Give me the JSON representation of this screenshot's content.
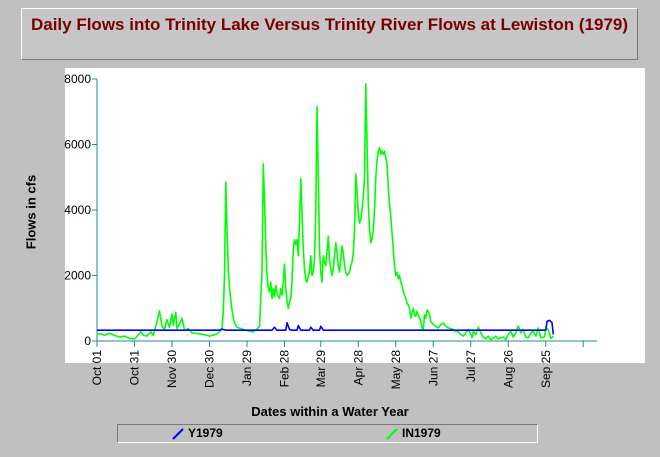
{
  "chart_data": {
    "type": "line",
    "title": "Daily Flows into Trinity Lake Versus Trinity River Flows at Lewiston (1979)",
    "xlabel": "Dates within a Water Year",
    "ylabel": "Flows in cfs",
    "ylim": [
      0,
      8000
    ],
    "xlim": [
      0,
      400
    ],
    "grid": false,
    "legend_position": "bottom",
    "x_ticks": [
      {
        "day": 0,
        "label": "Oct 01"
      },
      {
        "day": 30,
        "label": "Oct 31"
      },
      {
        "day": 60,
        "label": "Nov 30"
      },
      {
        "day": 90,
        "label": "Dec 30"
      },
      {
        "day": 120,
        "label": "Jan 29"
      },
      {
        "day": 150,
        "label": "Feb 28"
      },
      {
        "day": 179,
        "label": "Mar 29"
      },
      {
        "day": 209,
        "label": "Apr 28"
      },
      {
        "day": 239,
        "label": "May 28"
      },
      {
        "day": 269,
        "label": "Jun 27"
      },
      {
        "day": 299,
        "label": "Jul 27"
      },
      {
        "day": 329,
        "label": "Aug 26"
      },
      {
        "day": 359,
        "label": "Sep 25"
      }
    ],
    "x_minor_ticks": [
      389
    ],
    "y_ticks": [
      0,
      2000,
      4000,
      6000,
      8000
    ],
    "series": [
      {
        "name": "Y1979",
        "color": "#0000ff",
        "points": [
          [
            0,
            330
          ],
          [
            98,
            330
          ],
          [
            100,
            360
          ],
          [
            103,
            330
          ],
          [
            140,
            330
          ],
          [
            142,
            420
          ],
          [
            144,
            330
          ],
          [
            151,
            330
          ],
          [
            152,
            560
          ],
          [
            154,
            350
          ],
          [
            156,
            330
          ],
          [
            160,
            330
          ],
          [
            161,
            470
          ],
          [
            163,
            330
          ],
          [
            170,
            330
          ],
          [
            171,
            420
          ],
          [
            173,
            330
          ],
          [
            178,
            330
          ],
          [
            179,
            450
          ],
          [
            181,
            330
          ],
          [
            359,
            330
          ],
          [
            360,
            600
          ],
          [
            362,
            630
          ],
          [
            364,
            560
          ],
          [
            365,
            200
          ]
        ]
      },
      {
        "name": "IN1979",
        "color": "#00ff00",
        "points": [
          [
            0,
            200
          ],
          [
            3,
            220
          ],
          [
            6,
            170
          ],
          [
            10,
            240
          ],
          [
            14,
            170
          ],
          [
            18,
            120
          ],
          [
            22,
            150
          ],
          [
            26,
            80
          ],
          [
            30,
            60
          ],
          [
            32,
            140
          ],
          [
            35,
            280
          ],
          [
            37,
            180
          ],
          [
            40,
            150
          ],
          [
            43,
            280
          ],
          [
            45,
            170
          ],
          [
            48,
            600
          ],
          [
            50,
            920
          ],
          [
            52,
            450
          ],
          [
            54,
            350
          ],
          [
            56,
            650
          ],
          [
            58,
            420
          ],
          [
            60,
            820
          ],
          [
            61,
            480
          ],
          [
            63,
            880
          ],
          [
            64,
            380
          ],
          [
            66,
            520
          ],
          [
            68,
            700
          ],
          [
            70,
            330
          ],
          [
            73,
            380
          ],
          [
            76,
            250
          ],
          [
            80,
            230
          ],
          [
            85,
            200
          ],
          [
            90,
            150
          ],
          [
            95,
            200
          ],
          [
            98,
            280
          ],
          [
            100,
            400
          ],
          [
            101,
            900
          ],
          [
            102,
            2000
          ],
          [
            103,
            4850
          ],
          [
            104,
            3400
          ],
          [
            105,
            2200
          ],
          [
            106,
            1600
          ],
          [
            107,
            1250
          ],
          [
            108,
            950
          ],
          [
            109,
            720
          ],
          [
            110,
            560
          ],
          [
            112,
            420
          ],
          [
            115,
            380
          ],
          [
            118,
            340
          ],
          [
            122,
            300
          ],
          [
            125,
            280
          ],
          [
            128,
            360
          ],
          [
            130,
            450
          ],
          [
            132,
            2100
          ],
          [
            133,
            5400
          ],
          [
            134,
            4300
          ],
          [
            135,
            2900
          ],
          [
            136,
            2000
          ],
          [
            137,
            1600
          ],
          [
            138,
            1500
          ],
          [
            139,
            1800
          ],
          [
            140,
            1300
          ],
          [
            141,
            1600
          ],
          [
            142,
            1350
          ],
          [
            143,
            1700
          ],
          [
            144,
            1450
          ],
          [
            145,
            1350
          ],
          [
            146,
            1300
          ],
          [
            147,
            1600
          ],
          [
            148,
            1400
          ],
          [
            149,
            1800
          ],
          [
            150,
            2350
          ],
          [
            151,
            1600
          ],
          [
            152,
            1200
          ],
          [
            153,
            1000
          ],
          [
            154,
            1200
          ],
          [
            155,
            1300
          ],
          [
            156,
            1800
          ],
          [
            157,
            2800
          ],
          [
            158,
            3100
          ],
          [
            159,
            2950
          ],
          [
            160,
            3100
          ],
          [
            161,
            2600
          ],
          [
            162,
            3600
          ],
          [
            163,
            4950
          ],
          [
            164,
            3900
          ],
          [
            165,
            2800
          ],
          [
            166,
            2200
          ],
          [
            167,
            1850
          ],
          [
            168,
            1800
          ],
          [
            169,
            2000
          ],
          [
            170,
            2100
          ],
          [
            171,
            2600
          ],
          [
            172,
            2000
          ],
          [
            173,
            2100
          ],
          [
            174,
            2500
          ],
          [
            175,
            4000
          ],
          [
            176,
            7150
          ],
          [
            177,
            5000
          ],
          [
            178,
            2800
          ],
          [
            179,
            2100
          ],
          [
            180,
            1800
          ],
          [
            181,
            2600
          ],
          [
            182,
            2400
          ],
          [
            183,
            2300
          ],
          [
            184,
            2700
          ],
          [
            185,
            3200
          ],
          [
            186,
            2500
          ],
          [
            187,
            2200
          ],
          [
            188,
            2000
          ],
          [
            189,
            2200
          ],
          [
            190,
            2600
          ],
          [
            191,
            3000
          ],
          [
            192,
            2700
          ],
          [
            193,
            2300
          ],
          [
            194,
            2100
          ],
          [
            195,
            2500
          ],
          [
            196,
            2900
          ],
          [
            197,
            2700
          ],
          [
            198,
            2300
          ],
          [
            199,
            2100
          ],
          [
            200,
            2000
          ],
          [
            201,
            2050
          ],
          [
            202,
            2100
          ],
          [
            203,
            2300
          ],
          [
            204,
            2400
          ],
          [
            205,
            2700
          ],
          [
            206,
            3400
          ],
          [
            207,
            5100
          ],
          [
            208,
            4600
          ],
          [
            209,
            3900
          ],
          [
            210,
            3600
          ],
          [
            211,
            3700
          ],
          [
            212,
            4000
          ],
          [
            213,
            4400
          ],
          [
            214,
            5000
          ],
          [
            215,
            7850
          ],
          [
            216,
            6100
          ],
          [
            217,
            4200
          ],
          [
            218,
            3400
          ],
          [
            219,
            3000
          ],
          [
            220,
            3100
          ],
          [
            221,
            3400
          ],
          [
            222,
            4000
          ],
          [
            223,
            5000
          ],
          [
            224,
            5500
          ],
          [
            225,
            5800
          ],
          [
            226,
            5900
          ],
          [
            227,
            5700
          ],
          [
            228,
            5800
          ],
          [
            229,
            5700
          ],
          [
            230,
            5800
          ],
          [
            231,
            5600
          ],
          [
            232,
            5400
          ],
          [
            233,
            4700
          ],
          [
            234,
            4200
          ],
          [
            235,
            3800
          ],
          [
            236,
            3300
          ],
          [
            237,
            2800
          ],
          [
            238,
            2300
          ],
          [
            239,
            2000
          ],
          [
            240,
            2100
          ],
          [
            241,
            1900
          ],
          [
            242,
            2000
          ],
          [
            243,
            1800
          ],
          [
            244,
            1700
          ],
          [
            245,
            1500
          ],
          [
            246,
            1400
          ],
          [
            247,
            1300
          ],
          [
            248,
            1150
          ],
          [
            249,
            1100
          ],
          [
            250,
            1000
          ],
          [
            251,
            700
          ],
          [
            252,
            850
          ],
          [
            253,
            1000
          ],
          [
            254,
            800
          ],
          [
            255,
            750
          ],
          [
            256,
            900
          ],
          [
            257,
            800
          ],
          [
            258,
            700
          ],
          [
            259,
            620
          ],
          [
            260,
            400
          ],
          [
            261,
            320
          ],
          [
            262,
            800
          ],
          [
            263,
            700
          ],
          [
            264,
            950
          ],
          [
            265,
            900
          ],
          [
            266,
            800
          ],
          [
            267,
            600
          ],
          [
            269,
            500
          ],
          [
            271,
            450
          ],
          [
            273,
            400
          ],
          [
            275,
            500
          ],
          [
            277,
            550
          ],
          [
            279,
            450
          ],
          [
            281,
            400
          ],
          [
            283,
            380
          ],
          [
            285,
            350
          ],
          [
            287,
            300
          ],
          [
            289,
            280
          ],
          [
            291,
            200
          ],
          [
            293,
            150
          ],
          [
            295,
            250
          ],
          [
            297,
            350
          ],
          [
            299,
            200
          ],
          [
            300,
            100
          ],
          [
            301,
            300
          ],
          [
            303,
            200
          ],
          [
            305,
            420
          ],
          [
            307,
            250
          ],
          [
            309,
            120
          ],
          [
            311,
            60
          ],
          [
            313,
            150
          ],
          [
            315,
            40
          ],
          [
            317,
            90
          ],
          [
            319,
            150
          ],
          [
            321,
            60
          ],
          [
            323,
            100
          ],
          [
            325,
            120
          ],
          [
            327,
            40
          ],
          [
            329,
            200
          ],
          [
            331,
            300
          ],
          [
            333,
            120
          ],
          [
            335,
            250
          ],
          [
            337,
            460
          ],
          [
            339,
            250
          ],
          [
            341,
            350
          ],
          [
            343,
            120
          ],
          [
            345,
            100
          ],
          [
            347,
            250
          ],
          [
            349,
            300
          ],
          [
            351,
            150
          ],
          [
            353,
            400
          ],
          [
            355,
            100
          ],
          [
            357,
            120
          ],
          [
            358,
            120
          ],
          [
            359,
            400
          ],
          [
            361,
            350
          ],
          [
            363,
            80
          ],
          [
            365,
            150
          ]
        ]
      }
    ]
  }
}
